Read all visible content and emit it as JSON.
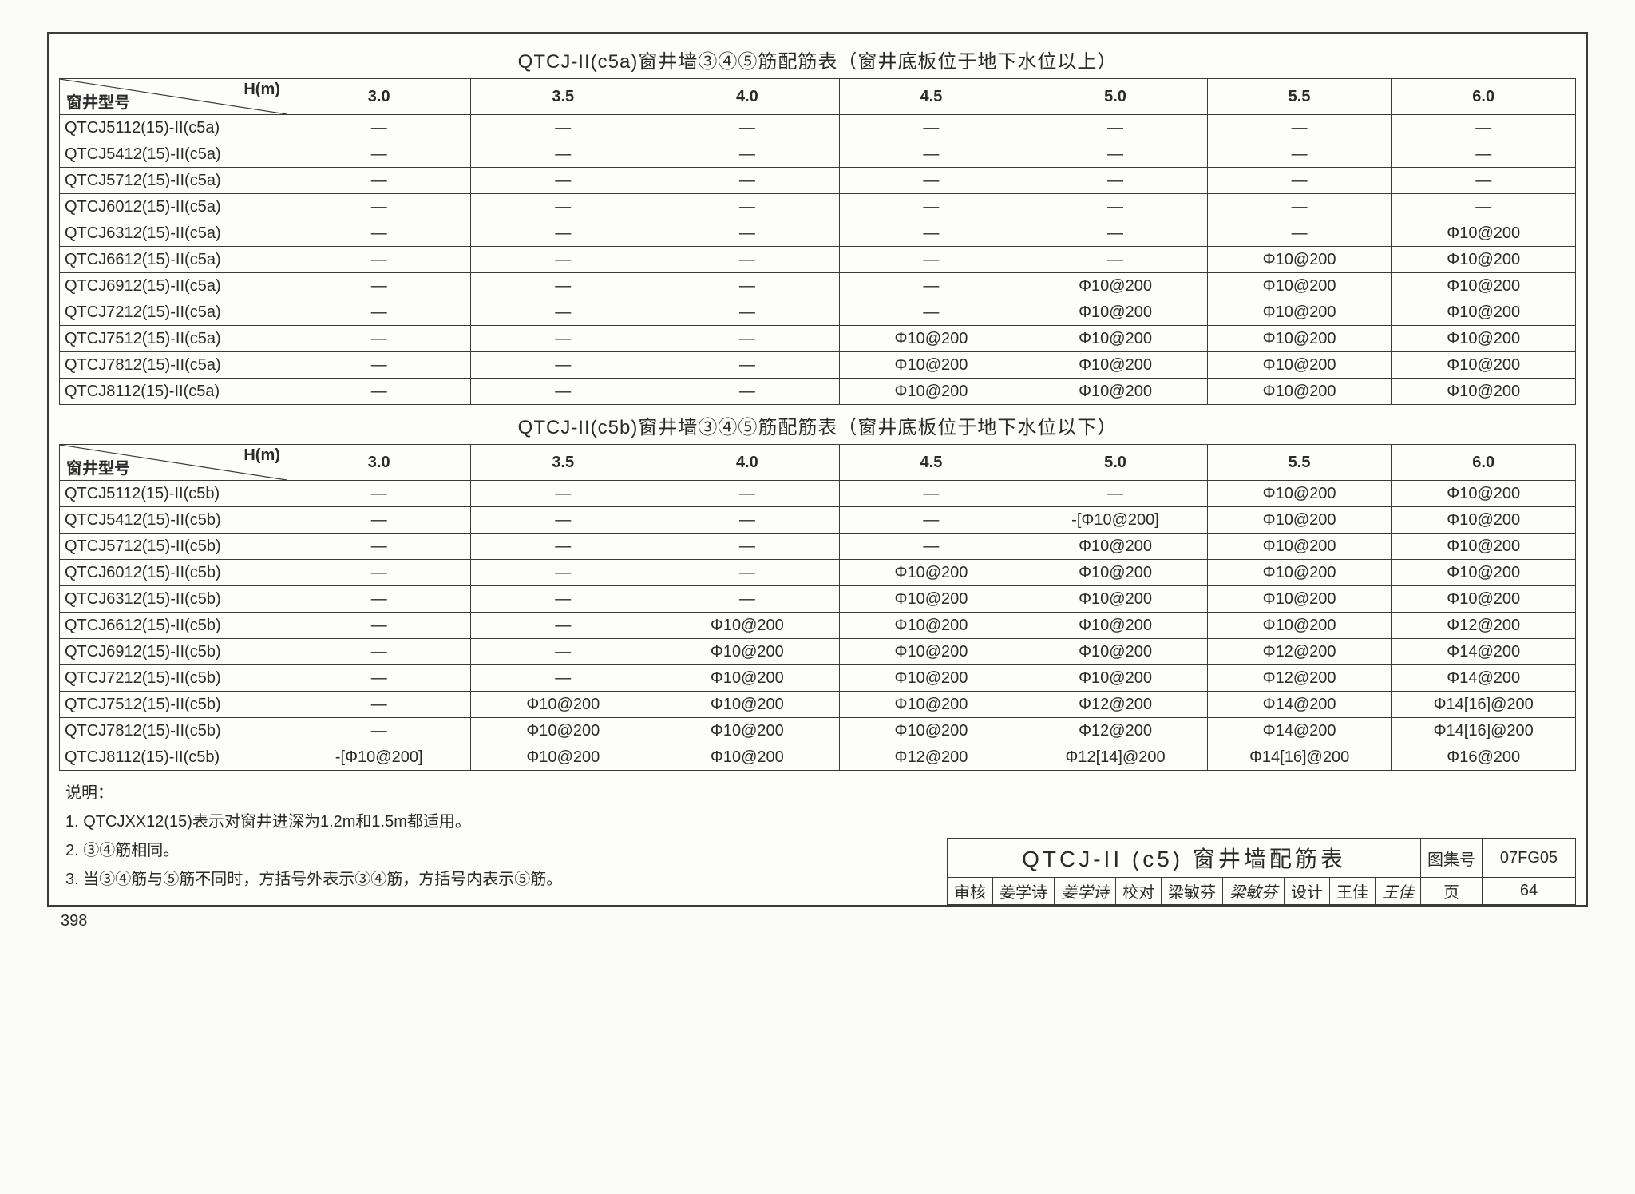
{
  "colors": {
    "line": "#3a3a3a",
    "bg": "#fdfdfb"
  },
  "header_diag": {
    "top": "H(m)",
    "bottom": "窗井型号"
  },
  "columns": [
    "3.0",
    "3.5",
    "4.0",
    "4.5",
    "5.0",
    "5.5",
    "6.0"
  ],
  "table_a": {
    "title": "QTCJ-II(c5a)窗井墙③④⑤筋配筋表（窗井底板位于地下水位以上）",
    "rows": [
      {
        "label": "QTCJ5112(15)-II(c5a)",
        "cells": [
          "—",
          "—",
          "—",
          "—",
          "—",
          "—",
          "—"
        ]
      },
      {
        "label": "QTCJ5412(15)-II(c5a)",
        "cells": [
          "—",
          "—",
          "—",
          "—",
          "—",
          "—",
          "—"
        ]
      },
      {
        "label": "QTCJ5712(15)-II(c5a)",
        "cells": [
          "—",
          "—",
          "—",
          "—",
          "—",
          "—",
          "—"
        ]
      },
      {
        "label": "QTCJ6012(15)-II(c5a)",
        "cells": [
          "—",
          "—",
          "—",
          "—",
          "—",
          "—",
          "—"
        ]
      },
      {
        "label": "QTCJ6312(15)-II(c5a)",
        "cells": [
          "—",
          "—",
          "—",
          "—",
          "—",
          "—",
          "Φ10@200"
        ]
      },
      {
        "label": "QTCJ6612(15)-II(c5a)",
        "cells": [
          "—",
          "—",
          "—",
          "—",
          "—",
          "Φ10@200",
          "Φ10@200"
        ]
      },
      {
        "label": "QTCJ6912(15)-II(c5a)",
        "cells": [
          "—",
          "—",
          "—",
          "—",
          "Φ10@200",
          "Φ10@200",
          "Φ10@200"
        ]
      },
      {
        "label": "QTCJ7212(15)-II(c5a)",
        "cells": [
          "—",
          "—",
          "—",
          "—",
          "Φ10@200",
          "Φ10@200",
          "Φ10@200"
        ]
      },
      {
        "label": "QTCJ7512(15)-II(c5a)",
        "cells": [
          "—",
          "—",
          "—",
          "Φ10@200",
          "Φ10@200",
          "Φ10@200",
          "Φ10@200"
        ]
      },
      {
        "label": "QTCJ7812(15)-II(c5a)",
        "cells": [
          "—",
          "—",
          "—",
          "Φ10@200",
          "Φ10@200",
          "Φ10@200",
          "Φ10@200"
        ]
      },
      {
        "label": "QTCJ8112(15)-II(c5a)",
        "cells": [
          "—",
          "—",
          "—",
          "Φ10@200",
          "Φ10@200",
          "Φ10@200",
          "Φ10@200"
        ]
      }
    ]
  },
  "table_b": {
    "title": "QTCJ-II(c5b)窗井墙③④⑤筋配筋表（窗井底板位于地下水位以下）",
    "rows": [
      {
        "label": "QTCJ5112(15)-II(c5b)",
        "cells": [
          "—",
          "—",
          "—",
          "—",
          "—",
          "Φ10@200",
          "Φ10@200"
        ]
      },
      {
        "label": "QTCJ5412(15)-II(c5b)",
        "cells": [
          "—",
          "—",
          "—",
          "—",
          "-[Φ10@200]",
          "Φ10@200",
          "Φ10@200"
        ]
      },
      {
        "label": "QTCJ5712(15)-II(c5b)",
        "cells": [
          "—",
          "—",
          "—",
          "—",
          "Φ10@200",
          "Φ10@200",
          "Φ10@200"
        ]
      },
      {
        "label": "QTCJ6012(15)-II(c5b)",
        "cells": [
          "—",
          "—",
          "—",
          "Φ10@200",
          "Φ10@200",
          "Φ10@200",
          "Φ10@200"
        ]
      },
      {
        "label": "QTCJ6312(15)-II(c5b)",
        "cells": [
          "—",
          "—",
          "—",
          "Φ10@200",
          "Φ10@200",
          "Φ10@200",
          "Φ10@200"
        ]
      },
      {
        "label": "QTCJ6612(15)-II(c5b)",
        "cells": [
          "—",
          "—",
          "Φ10@200",
          "Φ10@200",
          "Φ10@200",
          "Φ10@200",
          "Φ12@200"
        ]
      },
      {
        "label": "QTCJ6912(15)-II(c5b)",
        "cells": [
          "—",
          "—",
          "Φ10@200",
          "Φ10@200",
          "Φ10@200",
          "Φ12@200",
          "Φ14@200"
        ]
      },
      {
        "label": "QTCJ7212(15)-II(c5b)",
        "cells": [
          "—",
          "—",
          "Φ10@200",
          "Φ10@200",
          "Φ10@200",
          "Φ12@200",
          "Φ14@200"
        ]
      },
      {
        "label": "QTCJ7512(15)-II(c5b)",
        "cells": [
          "—",
          "Φ10@200",
          "Φ10@200",
          "Φ10@200",
          "Φ12@200",
          "Φ14@200",
          "Φ14[16]@200"
        ]
      },
      {
        "label": "QTCJ7812(15)-II(c5b)",
        "cells": [
          "—",
          "Φ10@200",
          "Φ10@200",
          "Φ10@200",
          "Φ12@200",
          "Φ14@200",
          "Φ14[16]@200"
        ]
      },
      {
        "label": "QTCJ8112(15)-II(c5b)",
        "cells": [
          "-[Φ10@200]",
          "Φ10@200",
          "Φ10@200",
          "Φ12@200",
          "Φ12[14]@200",
          "Φ14[16]@200",
          "Φ16@200"
        ]
      }
    ]
  },
  "notes": {
    "heading": "说明：",
    "items": [
      "1.  QTCJXX12(15)表示对窗井进深为1.2m和1.5m都适用。",
      "2.  ③④筋相同。",
      "3.  当③④筋与⑤筋不同时，方括号外表示③④筋，方括号内表示⑤筋。"
    ]
  },
  "titleblock": {
    "main": "QTCJ-II (c5) 窗井墙配筋表",
    "atlas_label": "图集号",
    "atlas_value": "07FG05",
    "review_label": "审核",
    "review_name": "姜学诗",
    "review_sig": "姜学诗",
    "check_label": "校对",
    "check_name": "梁敏芬",
    "check_sig": "梁敏芬",
    "design_label": "设计",
    "design_name": "王佳",
    "design_sig": "王佳",
    "page_label": "页",
    "page_value": "64"
  },
  "footer_page": "398"
}
